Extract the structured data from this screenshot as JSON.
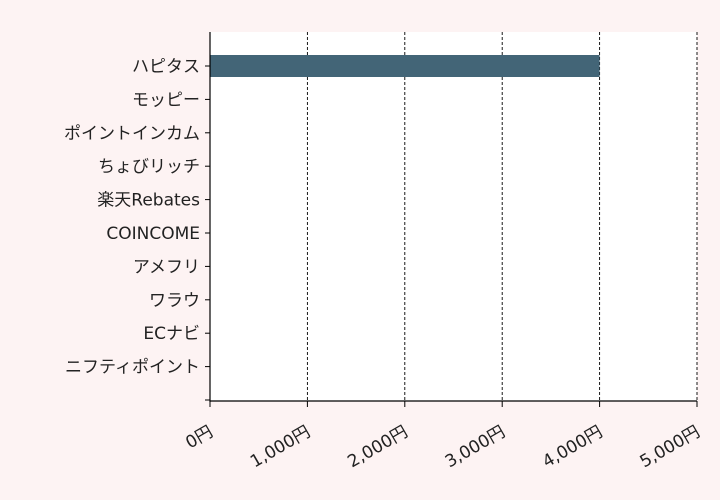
{
  "chart_data": {
    "type": "bar",
    "orientation": "horizontal",
    "categories": [
      "ハピタス",
      "モッピー",
      "ポイントインカム",
      "ちょびリッチ",
      "楽天Rebates",
      "COINCOME",
      "アメフリ",
      "ワラウ",
      "ECナビ",
      "ニフティポイント"
    ],
    "values": [
      4000,
      0,
      0,
      0,
      0,
      0,
      0,
      0,
      0,
      0
    ],
    "x_ticks": [
      0,
      1000,
      2000,
      3000,
      4000,
      5000
    ],
    "x_tick_labels": [
      "0円",
      "1,000円",
      "2,000円",
      "3,000円",
      "4,000円",
      "5,000円"
    ],
    "xlim": [
      0,
      5000
    ],
    "title": "",
    "xlabel": "",
    "ylabel": "",
    "grid": "vertical dashed",
    "bar_color": "#436577",
    "plot_background": "#ffffff",
    "page_background": "#fdf3f3"
  }
}
